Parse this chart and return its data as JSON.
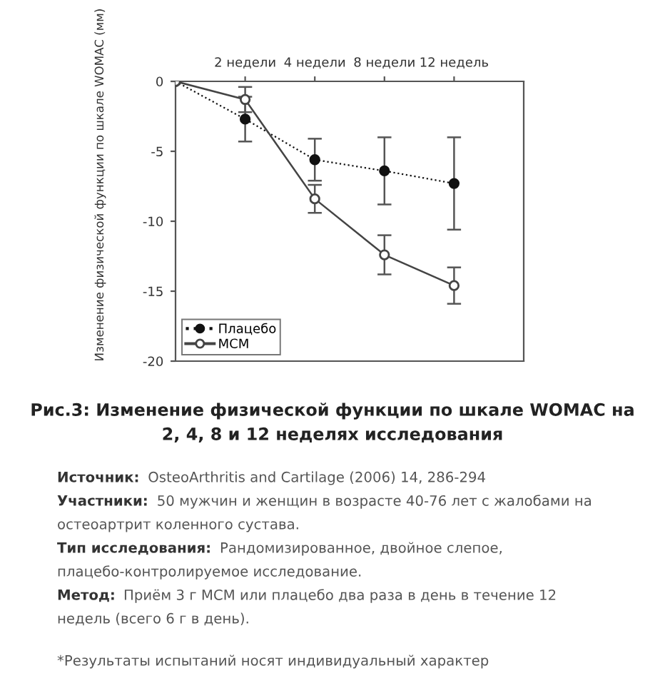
{
  "chart_data": {
    "type": "line",
    "title": "Рис.3: Изменение физической функции по шкале WOMAC на 2, 4, 8 и 12 неделях исследования",
    "ylabel": "Изменение физической функции по шкале WOMAC (мм)",
    "categories": [
      null,
      "2 недели",
      "4 недели",
      "8 недели",
      "12 недель"
    ],
    "series": [
      {
        "name": "Плацебо",
        "color": "#111111",
        "line_style": "dotted",
        "values": [
          0,
          -2.7,
          -5.6,
          -6.4,
          -7.3
        ],
        "errors": [
          null,
          1.6,
          1.5,
          2.4,
          3.3
        ]
      },
      {
        "name": "MCM",
        "color": "#444444",
        "line_style": "solid",
        "values": [
          0,
          -1.3,
          -8.4,
          -12.4,
          -14.6
        ],
        "errors": [
          null,
          0.9,
          1.0,
          1.4,
          1.3
        ]
      }
    ],
    "ylim": [
      -20,
      0
    ],
    "yticks": [
      0,
      -5,
      -10,
      -15,
      -20
    ],
    "marker": "circle",
    "legend": "bottom left",
    "grid": false,
    "annotations": [
      "Источник: OsteoArthritis and Cartilage (2006) 14, 286-294",
      "Участники: 50 мужчин и женщин в возрасте 40-76 лет с жалобами на остеоартрит коленного сустава.",
      "Тип исследования: Рандомизированное, двойное слепое, плацебо-контролируемое исследование.",
      "Метод: Приём 3 г MCM или плацебо два раза в день в течение 12 недель (всего 6 г в день).",
      "*Результаты испытаний носят индивидуальный характер"
    ]
  }
}
